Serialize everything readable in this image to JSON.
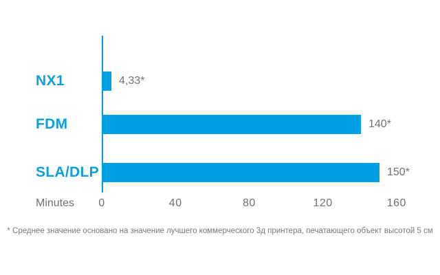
{
  "chart_data": {
    "type": "bar",
    "orientation": "horizontal",
    "title": "",
    "categories": [
      "NX1",
      "FDM",
      "SLA/DLP"
    ],
    "values": [
      4.33,
      140,
      150
    ],
    "value_labels": [
      "4,33*",
      "140*",
      "150*"
    ],
    "x_ticks": [
      "0",
      "40",
      "80",
      "120",
      "160"
    ],
    "x_tick_values": [
      0,
      40,
      80,
      120,
      160
    ],
    "xlabel": "Minutes",
    "xlim": [
      0,
      165
    ],
    "grid": false,
    "legend": "none",
    "footnote": "* Среднее значение основано на значение лучшего коммерческого 3д принтера, печатающего объект высотой 5 см",
    "colors": {
      "bar": "#009fe3",
      "axis": "#009fe3",
      "category_label": "#0b9fdd",
      "value_label": "#6d7278",
      "tick_label": "#6d7278",
      "footnote": "#75787c"
    }
  }
}
